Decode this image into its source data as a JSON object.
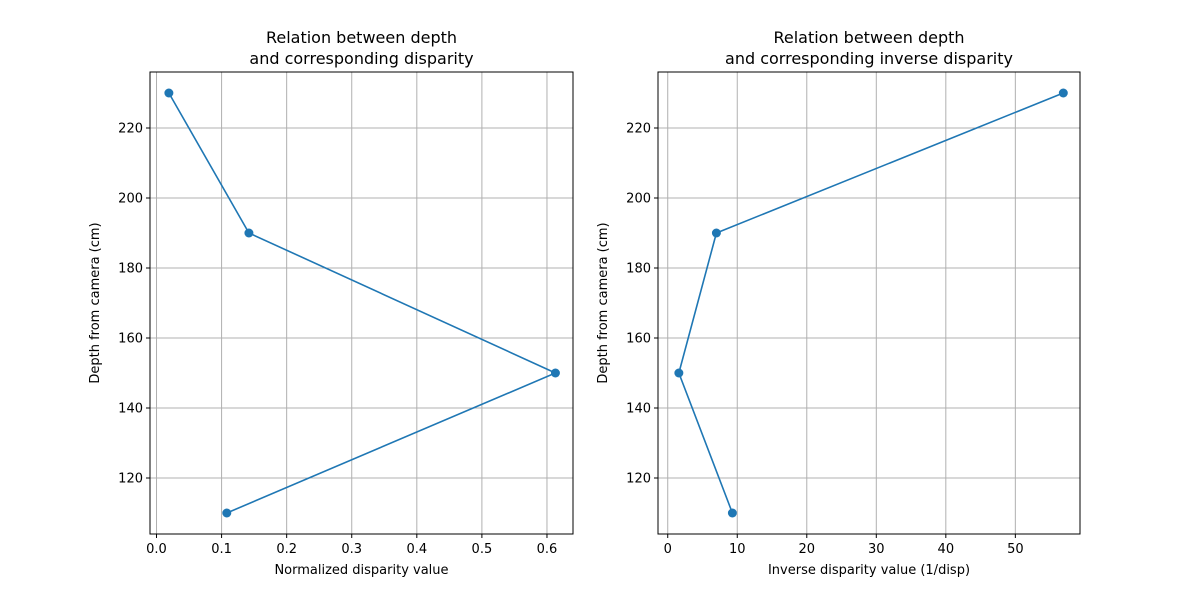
{
  "chart_data": [
    {
      "type": "line",
      "title": [
        "Relation between depth",
        "and corresponding disparity"
      ],
      "xlabel": "Normalized disparity value",
      "ylabel": "Depth from camera (cm)",
      "xlim": [
        -0.01,
        0.64
      ],
      "ylim": [
        104,
        236
      ],
      "xticks": [
        0.0,
        0.1,
        0.2,
        0.3,
        0.4,
        0.5,
        0.6
      ],
      "xtick_labels": [
        "0.0",
        "0.1",
        "0.2",
        "0.3",
        "0.4",
        "0.5",
        "0.6"
      ],
      "yticks": [
        120,
        140,
        160,
        180,
        200,
        220
      ],
      "ytick_labels": [
        "120",
        "140",
        "160",
        "180",
        "200",
        "220"
      ],
      "grid": true,
      "color": "#1f77b4",
      "series": [
        {
          "x": [
            0.019,
            0.142,
            0.613,
            0.108
          ],
          "y": [
            230,
            190,
            150,
            110
          ]
        }
      ]
    },
    {
      "type": "line",
      "title": [
        "Relation between depth",
        "and corresponding inverse disparity"
      ],
      "xlabel": "Inverse disparity value (1/disp)",
      "ylabel": "Depth from camera (cm)",
      "xlim": [
        -1.4,
        59.3
      ],
      "ylim": [
        104,
        236
      ],
      "xticks": [
        0,
        10,
        20,
        30,
        40,
        50
      ],
      "xtick_labels": [
        "0",
        "10",
        "20",
        "30",
        "40",
        "50"
      ],
      "yticks": [
        120,
        140,
        160,
        180,
        200,
        220
      ],
      "ytick_labels": [
        "120",
        "140",
        "160",
        "180",
        "200",
        "220"
      ],
      "grid": true,
      "color": "#1f77b4",
      "series": [
        {
          "x": [
            56.9,
            7.0,
            1.6,
            9.3
          ],
          "y": [
            230,
            190,
            150,
            110
          ]
        }
      ]
    }
  ]
}
